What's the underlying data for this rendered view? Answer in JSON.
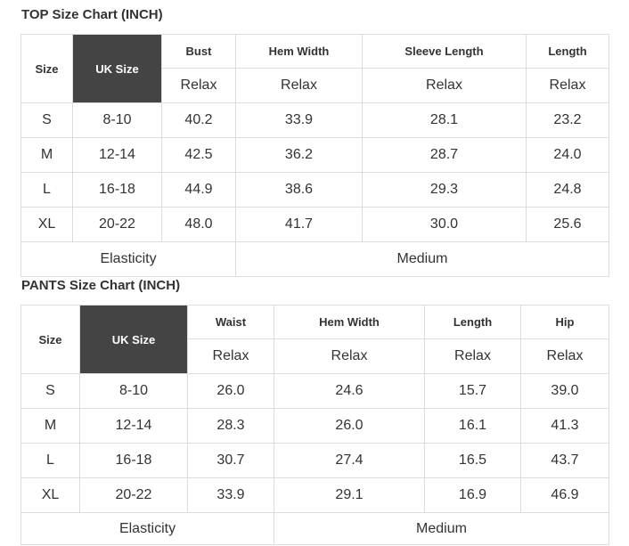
{
  "top": {
    "title": "TOP Size Chart (INCH)",
    "headers": [
      "Size",
      "UK Size",
      "Bust",
      "Hem Width",
      "Sleeve Length",
      "Length"
    ],
    "fit": [
      "Relax",
      "Relax",
      "Relax",
      "Relax"
    ],
    "rows": [
      [
        "S",
        "8-10",
        "40.2",
        "33.9",
        "28.1",
        "23.2"
      ],
      [
        "M",
        "12-14",
        "42.5",
        "36.2",
        "28.7",
        "24.0"
      ],
      [
        "L",
        "16-18",
        "44.9",
        "38.6",
        "29.3",
        "24.8"
      ],
      [
        "XL",
        "20-22",
        "48.0",
        "41.7",
        "30.0",
        "25.6"
      ]
    ],
    "footer": [
      "Elasticity",
      "Medium"
    ]
  },
  "pants": {
    "title": "PANTS Size Chart (INCH)",
    "headers": [
      "Size",
      "UK Size",
      "Waist",
      "Hem Width",
      "Length",
      "Hip"
    ],
    "fit": [
      "Relax",
      "Relax",
      "Relax",
      "Relax"
    ],
    "rows": [
      [
        "S",
        "8-10",
        "26.0",
        "24.6",
        "15.7",
        "39.0"
      ],
      [
        "M",
        "12-14",
        "28.3",
        "26.0",
        "16.1",
        "41.3"
      ],
      [
        "L",
        "16-18",
        "30.7",
        "27.4",
        "16.5",
        "43.7"
      ],
      [
        "XL",
        "20-22",
        "33.9",
        "29.1",
        "16.9",
        "46.9"
      ]
    ],
    "footer": [
      "Elasticity",
      "Medium"
    ]
  }
}
